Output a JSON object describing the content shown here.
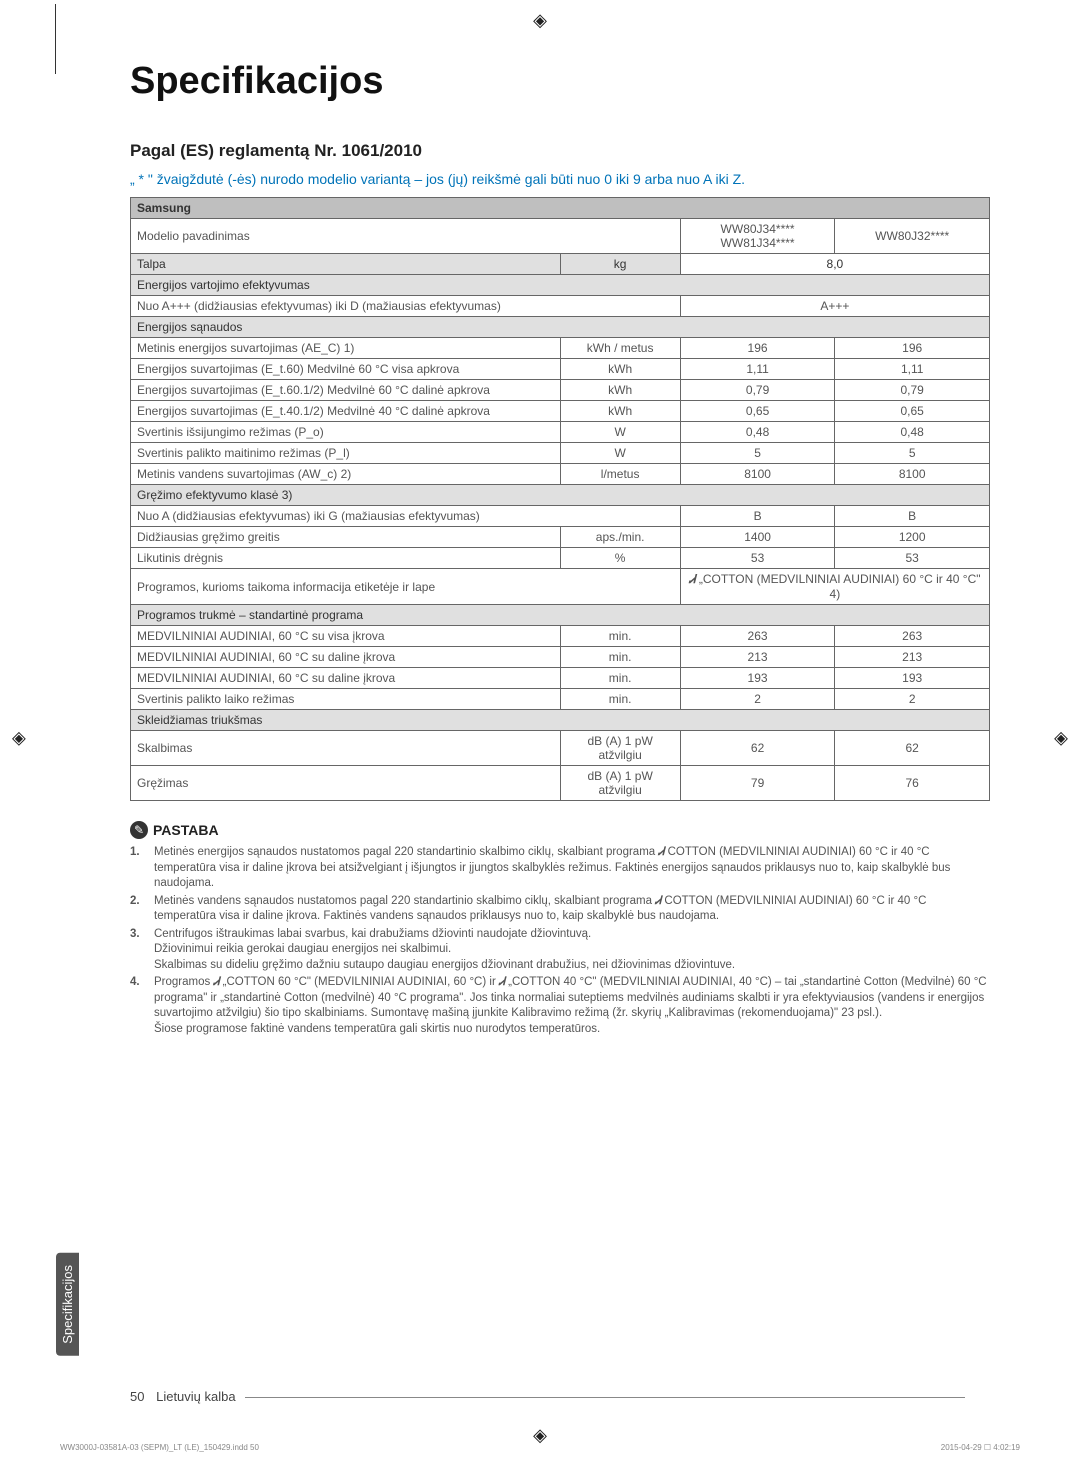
{
  "page": {
    "title": "Specifikacijos",
    "section_heading": "Pagal (ES) reglamentą Nr. 1061/2010",
    "subtitle": "„ * \" žvaigždutė (-ės) nurodo modelio variantą – jos (jų) reikšmė gali būti nuo 0 iki 9 arba nuo A iki Z.",
    "side_tab": "Specifikacijos",
    "footer_number": "50",
    "footer_lang": "Lietuvių kalba",
    "print_left": "WW3000J-03581A-03 (SEPM)_LT (LE)_150429.indd   50",
    "print_right": "2015-04-29   ☐ 4:02:19"
  },
  "table": {
    "brand": "Samsung",
    "model_label": "Modelio pavadinimas",
    "model_a": "WW80J34****\nWW81J34****",
    "model_b": "WW80J32****",
    "capacity_label": "Talpa",
    "capacity_unit": "kg",
    "capacity_value": "8,0",
    "efficiency_section": "Energijos vartojimo efektyvumas",
    "efficiency_label": "Nuo A+++ (didžiausias efektyvumas) iki D (mažiausias efektyvumas)",
    "efficiency_value": "A+++",
    "consumption_section": "Energijos sąnaudos",
    "rows": [
      {
        "label": "Metinis energijos suvartojimas (AE_C) 1)",
        "unit": "kWh / metus",
        "a": "196",
        "b": "196"
      },
      {
        "label": "Energijos suvartojimas (E_t.60) Medvilnė 60 °C visa apkrova",
        "unit": "kWh",
        "a": "1,11",
        "b": "1,11"
      },
      {
        "label": "Energijos suvartojimas (E_t.60.1/2) Medvilnė 60 °C dalinė apkrova",
        "unit": "kWh",
        "a": "0,79",
        "b": "0,79"
      },
      {
        "label": "Energijos suvartojimas (E_t.40.1/2) Medvilnė 40 °C dalinė apkrova",
        "unit": "kWh",
        "a": "0,65",
        "b": "0,65"
      },
      {
        "label": "Svertinis išsijungimo režimas (P_o)",
        "unit": "W",
        "a": "0,48",
        "b": "0,48"
      },
      {
        "label": "Svertinis palikto maitinimo režimas (P_l)",
        "unit": "W",
        "a": "5",
        "b": "5"
      },
      {
        "label": "Metinis vandens suvartojimas (AW_c) 2)",
        "unit": "l/metus",
        "a": "8100",
        "b": "8100"
      }
    ],
    "spin_section": "Gręžimo efektyvumo klasė 3)",
    "spin_rows": [
      {
        "label": "Nuo A (didžiausias efektyvumas) iki G (mažiausias efektyvumas)",
        "unit": "",
        "a": "B",
        "b": "B"
      },
      {
        "label": "Didžiausias gręžimo greitis",
        "unit": "aps./min.",
        "a": "1400",
        "b": "1200"
      },
      {
        "label": "Likutinis drėgnis",
        "unit": "%",
        "a": "53",
        "b": "53"
      }
    ],
    "programs_label": "Programos, kurioms taikoma informacija etiketėje ir lape",
    "programs_value": "„COTTON (MEDVILNINIAI AUDINIAI) 60 °C ir 40 °C\" 4)",
    "duration_section": "Programos trukmė – standartinė programa",
    "duration_rows": [
      {
        "label": "MEDVILNINIAI AUDINIAI, 60 °C su visa įkrova",
        "unit": "min.",
        "a": "263",
        "b": "263"
      },
      {
        "label": "MEDVILNINIAI AUDINIAI, 60 °C su daline įkrova",
        "unit": "min.",
        "a": "213",
        "b": "213"
      },
      {
        "label": "MEDVILNINIAI AUDINIAI, 60 °C su daline įkrova",
        "unit": "min.",
        "a": "193",
        "b": "193"
      },
      {
        "label": "Svertinis palikto laiko režimas",
        "unit": "min.",
        "a": "2",
        "b": "2"
      }
    ],
    "noise_section": "Skleidžiamas triukšmas",
    "noise_rows": [
      {
        "label": "Skalbimas",
        "unit": "dB (A) 1 pW atžvilgiu",
        "a": "62",
        "b": "62"
      },
      {
        "label": "Gręžimas",
        "unit": "dB (A) 1 pW atžvilgiu",
        "a": "79",
        "b": "76"
      }
    ]
  },
  "notes": {
    "heading": "PASTABA",
    "items": [
      "Metinės energijos sąnaudos nustatomos pagal 220 standartinio skalbimo ciklų, skalbiant programa 🅒 COTTON (MEDVILNINIAI AUDINIAI) 60 °C ir 40 °C temperatūra visa ir daline įkrova bei atsižvelgiant į išjungtos ir įjungtos skalbyklės režimus. Faktinės energijos sąnaudos priklausys nuo to, kaip skalbyklė bus naudojama.",
      "Metinės vandens sąnaudos nustatomos pagal 220 standartinio skalbimo ciklų, skalbiant programa 🅒 COTTON (MEDVILNINIAI AUDINIAI) 60 °C ir 40 °C temperatūra visa ir daline įkrova. Faktinės vandens sąnaudos priklausys nuo to, kaip skalbyklė bus naudojama.",
      "Centrifugos ištraukimas labai svarbus, kai drabužiams džiovinti naudojate džiovintuvą.\nDžiovinimui reikia gerokai daugiau energijos nei skalbimui.\nSkalbimas su dideliu gręžimo dažniu sutaupo daugiau energijos džiovinant drabužius, nei džiovinimas džiovintuve.",
      "Programos 🅒 „COTTON 60 °C\" (MEDVILNINIAI AUDINIAI, 60 °C) ir 🅒 „COTTON 40 °C\" (MEDVILNINIAI AUDINIAI, 40 °C) – tai „standartinė Cotton (Medvilnė) 60 °C programa\" ir „standartinė Cotton (medvilnė) 40 °C programa\". Jos tinka normaliai suteptiems medvilnės audiniams skalbti ir yra efektyviausios (vandens ir energijos suvartojimo atžvilgiu) šio tipo skalbiniams. Sumontavę mašiną įjunkite Kalibravimo režimą (žr. skyrių „Kalibravimas (rekomenduojama)\" 23 psl.).\nŠiose programose faktinė vandens temperatūra gali skirtis nuo nurodytos temperatūros."
    ]
  }
}
